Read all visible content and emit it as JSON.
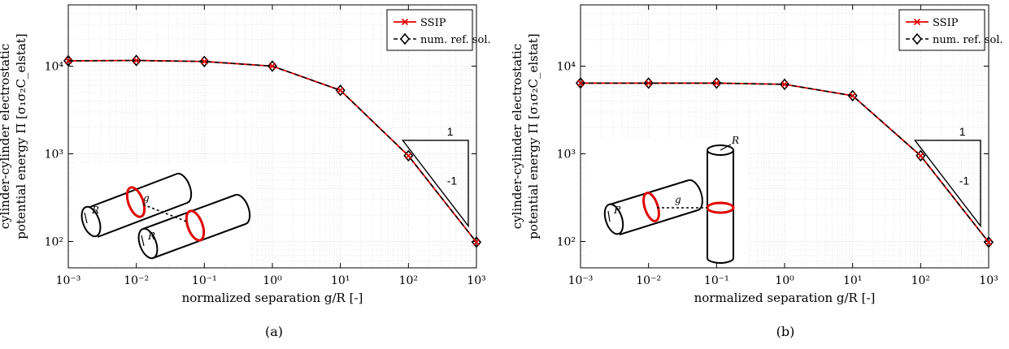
{
  "colors": {
    "ssip": "#e00000",
    "reference": "#000000",
    "grid": "#d0d0d0",
    "ring": "#e00000"
  },
  "chart_data": [
    {
      "type": "line",
      "panel": "(a)",
      "xlabel": "normalized separation g/R [-]",
      "ylabel_line1": "cylinder-cylinder electrostatic",
      "ylabel_line2": "potential energy Π [σ₁σ₂C_elstat]",
      "xscale": "log",
      "yscale": "log",
      "xlim": [
        0.001,
        1000
      ],
      "ylim": [
        50,
        50000
      ],
      "grid": true,
      "legend_position": "top-right",
      "x": [
        0.001,
        0.01,
        0.1,
        1,
        10,
        100,
        1000
      ],
      "x_tick_labels": [
        "10⁻³",
        "10⁻²",
        "10⁻¹",
        "10⁰",
        "10¹",
        "10²",
        "10³"
      ],
      "y_ticks": [
        100,
        1000,
        10000
      ],
      "y_tick_labels": [
        "10²",
        "10³",
        "10⁴"
      ],
      "series": [
        {
          "name": "SSIP",
          "values": [
            11500,
            11600,
            11300,
            10000,
            5300,
            950,
            98
          ]
        },
        {
          "name": "num. ref. sol.",
          "values": [
            11500,
            11600,
            11300,
            10000,
            5300,
            950,
            98
          ]
        }
      ],
      "slope_triangle": {
        "run_label": "1",
        "rise_label": "-1"
      },
      "inset_labels": {
        "radius": "R",
        "gap": "g"
      }
    },
    {
      "type": "line",
      "panel": "(b)",
      "xlabel": "normalized separation g/R [-]",
      "ylabel_line1": "cylinder-cylinder electrostatic",
      "ylabel_line2": "potential energy Π [σ₁σ₂C_elstat]",
      "xscale": "log",
      "yscale": "log",
      "xlim": [
        0.001,
        1000
      ],
      "ylim": [
        50,
        50000
      ],
      "grid": true,
      "legend_position": "top-right",
      "x": [
        0.001,
        0.01,
        0.1,
        1,
        10,
        100,
        1000
      ],
      "x_tick_labels": [
        "10⁻³",
        "10⁻²",
        "10⁻¹",
        "10⁰",
        "10¹",
        "10²",
        "10³"
      ],
      "y_ticks": [
        100,
        1000,
        10000
      ],
      "y_tick_labels": [
        "10²",
        "10³",
        "10⁴"
      ],
      "series": [
        {
          "name": "SSIP",
          "values": [
            6400,
            6400,
            6400,
            6200,
            4600,
            950,
            98
          ]
        },
        {
          "name": "num. ref. sol.",
          "values": [
            6400,
            6400,
            6400,
            6200,
            4600,
            950,
            98
          ]
        }
      ],
      "slope_triangle": {
        "run_label": "1",
        "rise_label": "-1"
      },
      "inset_labels": {
        "radius": "R",
        "gap": "g"
      }
    }
  ]
}
